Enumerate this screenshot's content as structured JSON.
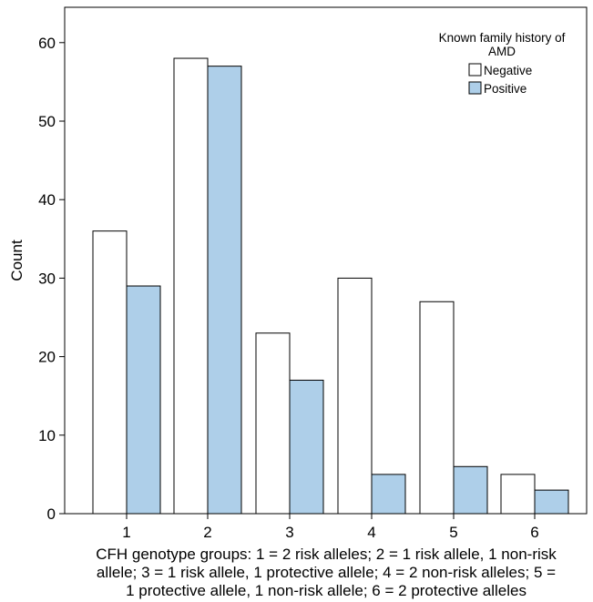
{
  "chart_data": {
    "type": "bar",
    "categories": [
      "1",
      "2",
      "3",
      "4",
      "5",
      "6"
    ],
    "series": [
      {
        "name": "Negative",
        "values": [
          36,
          58,
          23,
          30,
          27,
          5
        ],
        "color": "#ffffff"
      },
      {
        "name": "Positive",
        "values": [
          29,
          57,
          17,
          5,
          6,
          3
        ],
        "color": "#aecfe9"
      }
    ],
    "ylabel": "Count",
    "xlabel_lines": [
      "CFH genotype groups: 1 = 2 risk alleles; 2 = 1 risk allele, 1 non-risk",
      "allele; 3 = 1 risk allele, 1 protective allele; 4 = 2 non-risk alleles; 5 =",
      "1 protective allele, 1 non-risk allele; 6 = 2 protective alleles"
    ],
    "yticks": [
      0,
      10,
      20,
      30,
      40,
      50,
      60
    ],
    "ylim": [
      0,
      64.5
    ],
    "legend": {
      "title_lines": [
        "Known family history of",
        "AMD"
      ],
      "placement": "top-right"
    },
    "grid": false
  }
}
